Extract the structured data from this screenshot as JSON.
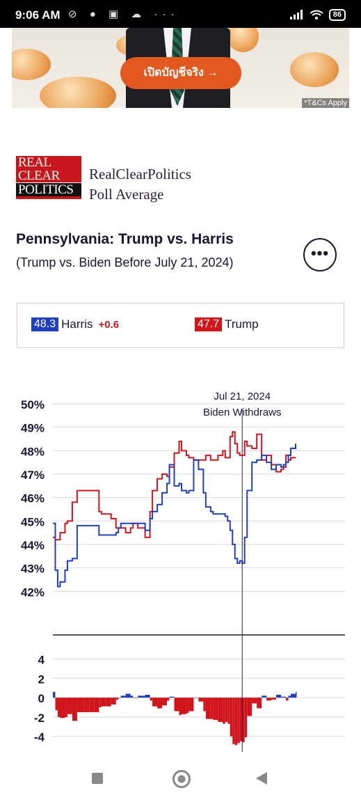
{
  "status_bar": {
    "time": "9:06 AM",
    "left_icons": "⊘ ● ▣ ☁ ···",
    "battery": "86"
  },
  "ad": {
    "button_label": "เปิดบัญชีจริง →",
    "terms": "*T&Cs Apply"
  },
  "brand": {
    "logo_lines": [
      "REAL",
      "CLEAR",
      "POLITICS"
    ],
    "line1": "RealClearPolitics",
    "line2": "Poll Average"
  },
  "chart_header": {
    "title": "Pennsylvania: Trump vs. Harris",
    "subtitle": "(Trump vs. Biden Before July 21, 2024)",
    "more_label": "•••"
  },
  "legend": {
    "harris": {
      "value": "48.3",
      "name": "Harris",
      "change": "+0.6",
      "color": "#1f3fbf"
    },
    "trump": {
      "value": "47.7",
      "name": "Trump",
      "color": "#d0151c"
    }
  },
  "chart_data": {
    "type": "line",
    "annotation": {
      "date": "Jul 21, 2024",
      "label": "Biden Withdraws",
      "x": 78
    },
    "top_panel": {
      "yticks": [
        "50%",
        "49%",
        "48%",
        "47%",
        "46%",
        "45%",
        "44%",
        "43%",
        "42%"
      ],
      "ylim": [
        41,
        50
      ],
      "x": [
        0,
        1,
        2,
        3,
        5,
        6,
        8,
        10,
        13,
        15,
        17,
        19,
        20,
        22,
        24,
        26,
        27,
        28,
        30,
        32,
        33,
        35,
        36,
        38,
        40,
        41,
        43,
        45,
        47,
        48,
        50,
        52,
        53,
        55,
        56,
        58,
        60,
        62,
        63,
        65,
        66,
        68,
        70,
        71,
        72,
        73,
        74,
        75,
        76,
        77,
        78,
        79,
        80,
        82,
        84,
        86,
        88,
        90,
        92,
        94,
        95,
        96,
        97,
        98,
        100
      ],
      "series": [
        {
          "name": "Trump",
          "color": "#d0151c",
          "values": [
            44.3,
            44.2,
            44.2,
            44.5,
            44.9,
            45.0,
            45.8,
            46.3,
            46.3,
            46.3,
            46.3,
            45.4,
            45.3,
            45.3,
            45.1,
            44.7,
            44.7,
            44.7,
            44.5,
            44.7,
            44.9,
            44.7,
            44.7,
            44.3,
            45.4,
            46.3,
            46.8,
            47.0,
            46.9,
            47.3,
            47.9,
            48.4,
            48.0,
            47.8,
            47.7,
            47.6,
            47.6,
            47.6,
            47.8,
            47.6,
            47.6,
            47.8,
            48.0,
            47.7,
            47.7,
            48.6,
            48.8,
            48.3,
            47.9,
            47.8,
            47.8,
            48.4,
            48.2,
            48.1,
            48.7,
            47.6,
            47.8,
            47.4,
            47.1,
            47.2,
            47.3,
            47.8,
            47.6,
            47.7,
            47.7
          ]
        },
        {
          "name": "Harris",
          "color": "#1f3fbf",
          "values": [
            44.9,
            42.9,
            42.2,
            42.4,
            42.9,
            43.3,
            43.4,
            44.8,
            44.8,
            44.8,
            44.8,
            44.4,
            44.4,
            44.4,
            44.4,
            44.5,
            44.7,
            44.9,
            44.9,
            44.9,
            44.9,
            44.9,
            44.9,
            44.6,
            45.1,
            45.4,
            45.7,
            46.2,
            46.6,
            47.4,
            46.5,
            46.6,
            46.3,
            46.2,
            46.3,
            47.6,
            47.2,
            46.2,
            45.6,
            45.4,
            45.3,
            45.3,
            45.3,
            45.2,
            45.0,
            44.6,
            44.0,
            43.4,
            43.2,
            43.3,
            43.2,
            44.3,
            46.3,
            47.5,
            47.6,
            47.8,
            47.5,
            47.2,
            47.4,
            47.3,
            47.4,
            47.5,
            47.8,
            48.1,
            48.3
          ]
        }
      ]
    },
    "spread_panel": {
      "yticks": [
        "4",
        "2",
        "0",
        "-2",
        "-4"
      ],
      "ylim": [
        -5.6,
        5.4
      ]
    }
  },
  "nav_bar": {
    "back": "back",
    "home": "home",
    "recents": "recents"
  }
}
